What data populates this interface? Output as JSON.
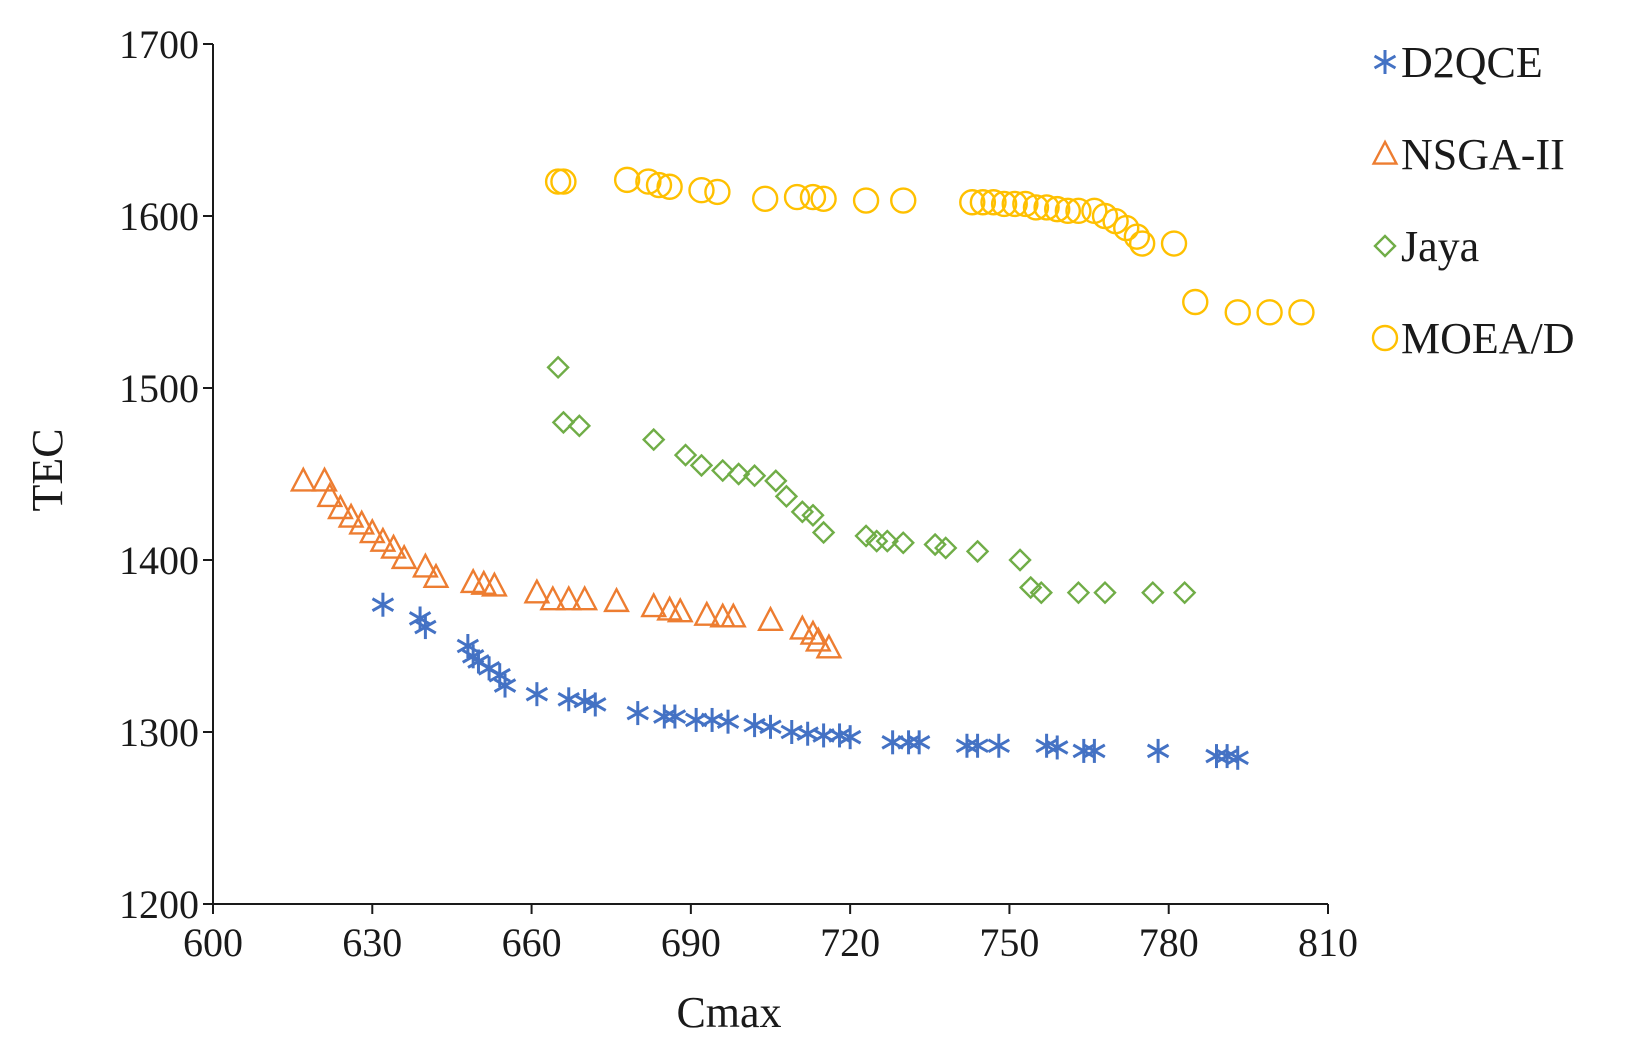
{
  "chart_data": {
    "type": "scatter",
    "title": "",
    "xlabel": "Cmax",
    "ylabel": "TEC",
    "xlim": [
      600,
      810
    ],
    "ylim": [
      1200,
      1700
    ],
    "xticks": [
      "600",
      "630",
      "660",
      "690",
      "720",
      "750",
      "780",
      "810"
    ],
    "yticks": [
      "1200",
      "1300",
      "1400",
      "1500",
      "1600",
      "1700"
    ],
    "grid": false,
    "legend_position": "right",
    "series": [
      {
        "name": "D2QCE",
        "marker": "asterisk",
        "color": "#4472C4",
        "points": [
          [
            632,
            1374
          ],
          [
            639,
            1366
          ],
          [
            640,
            1361
          ],
          [
            648,
            1350
          ],
          [
            649,
            1344
          ],
          [
            650,
            1341
          ],
          [
            652,
            1337
          ],
          [
            654,
            1333
          ],
          [
            655,
            1327
          ],
          [
            661,
            1322
          ],
          [
            667,
            1319
          ],
          [
            670,
            1318
          ],
          [
            672,
            1316
          ],
          [
            680,
            1311
          ],
          [
            685,
            1309
          ],
          [
            687,
            1309
          ],
          [
            691,
            1307
          ],
          [
            694,
            1307
          ],
          [
            697,
            1306
          ],
          [
            702,
            1304
          ],
          [
            705,
            1303
          ],
          [
            709,
            1300
          ],
          [
            712,
            1299
          ],
          [
            715,
            1298
          ],
          [
            718,
            1298
          ],
          [
            720,
            1297
          ],
          [
            728,
            1294
          ],
          [
            731,
            1294
          ],
          [
            733,
            1294
          ],
          [
            742,
            1292
          ],
          [
            744,
            1292
          ],
          [
            748,
            1292
          ],
          [
            757,
            1292
          ],
          [
            759,
            1291
          ],
          [
            764,
            1289
          ],
          [
            766,
            1289
          ],
          [
            778,
            1289
          ],
          [
            789,
            1286
          ],
          [
            791,
            1286
          ],
          [
            793,
            1285
          ]
        ]
      },
      {
        "name": "NSGA-II",
        "marker": "triangle",
        "color": "#ED7D31",
        "points": [
          [
            617,
            1446
          ],
          [
            621,
            1446
          ],
          [
            622,
            1437
          ],
          [
            624,
            1430
          ],
          [
            626,
            1425
          ],
          [
            628,
            1421
          ],
          [
            630,
            1416
          ],
          [
            632,
            1411
          ],
          [
            634,
            1407
          ],
          [
            636,
            1401
          ],
          [
            640,
            1396
          ],
          [
            642,
            1390
          ],
          [
            649,
            1387
          ],
          [
            651,
            1386
          ],
          [
            653,
            1385
          ],
          [
            661,
            1381
          ],
          [
            664,
            1377
          ],
          [
            667,
            1377
          ],
          [
            670,
            1377
          ],
          [
            676,
            1376
          ],
          [
            683,
            1373
          ],
          [
            686,
            1371
          ],
          [
            688,
            1370
          ],
          [
            693,
            1368
          ],
          [
            696,
            1367
          ],
          [
            698,
            1367
          ],
          [
            705,
            1365
          ],
          [
            711,
            1360
          ],
          [
            713,
            1357
          ],
          [
            714,
            1353
          ],
          [
            716,
            1349
          ]
        ]
      },
      {
        "name": "Jaya",
        "marker": "diamond",
        "color": "#70AD47",
        "points": [
          [
            665,
            1512
          ],
          [
            666,
            1480
          ],
          [
            669,
            1478
          ],
          [
            683,
            1470
          ],
          [
            689,
            1461
          ],
          [
            692,
            1455
          ],
          [
            696,
            1452
          ],
          [
            699,
            1450
          ],
          [
            702,
            1449
          ],
          [
            706,
            1446
          ],
          [
            708,
            1437
          ],
          [
            711,
            1428
          ],
          [
            713,
            1426
          ],
          [
            715,
            1416
          ],
          [
            723,
            1414
          ],
          [
            725,
            1411
          ],
          [
            727,
            1411
          ],
          [
            730,
            1410
          ],
          [
            736,
            1409
          ],
          [
            738,
            1407
          ],
          [
            744,
            1405
          ],
          [
            752,
            1400
          ],
          [
            754,
            1384
          ],
          [
            756,
            1381
          ],
          [
            763,
            1381
          ],
          [
            768,
            1381
          ],
          [
            777,
            1381
          ],
          [
            783,
            1381
          ]
        ]
      },
      {
        "name": "MOEA/D",
        "marker": "circle",
        "color": "#FFC000",
        "points": [
          [
            665,
            1620
          ],
          [
            666,
            1620
          ],
          [
            678,
            1621
          ],
          [
            682,
            1620
          ],
          [
            684,
            1618
          ],
          [
            686,
            1617
          ],
          [
            692,
            1615
          ],
          [
            695,
            1614
          ],
          [
            704,
            1610
          ],
          [
            710,
            1611
          ],
          [
            713,
            1611
          ],
          [
            715,
            1610
          ],
          [
            723,
            1609
          ],
          [
            730,
            1609
          ],
          [
            743,
            1608
          ],
          [
            745,
            1608
          ],
          [
            747,
            1608
          ],
          [
            749,
            1607
          ],
          [
            751,
            1607
          ],
          [
            753,
            1607
          ],
          [
            755,
            1605
          ],
          [
            757,
            1605
          ],
          [
            759,
            1604
          ],
          [
            761,
            1603
          ],
          [
            763,
            1603
          ],
          [
            766,
            1603
          ],
          [
            768,
            1600
          ],
          [
            770,
            1597
          ],
          [
            772,
            1593
          ],
          [
            774,
            1588
          ],
          [
            775,
            1584
          ],
          [
            781,
            1584
          ],
          [
            785,
            1550
          ],
          [
            793,
            1544
          ],
          [
            799,
            1544
          ],
          [
            805,
            1544
          ]
        ]
      }
    ]
  }
}
